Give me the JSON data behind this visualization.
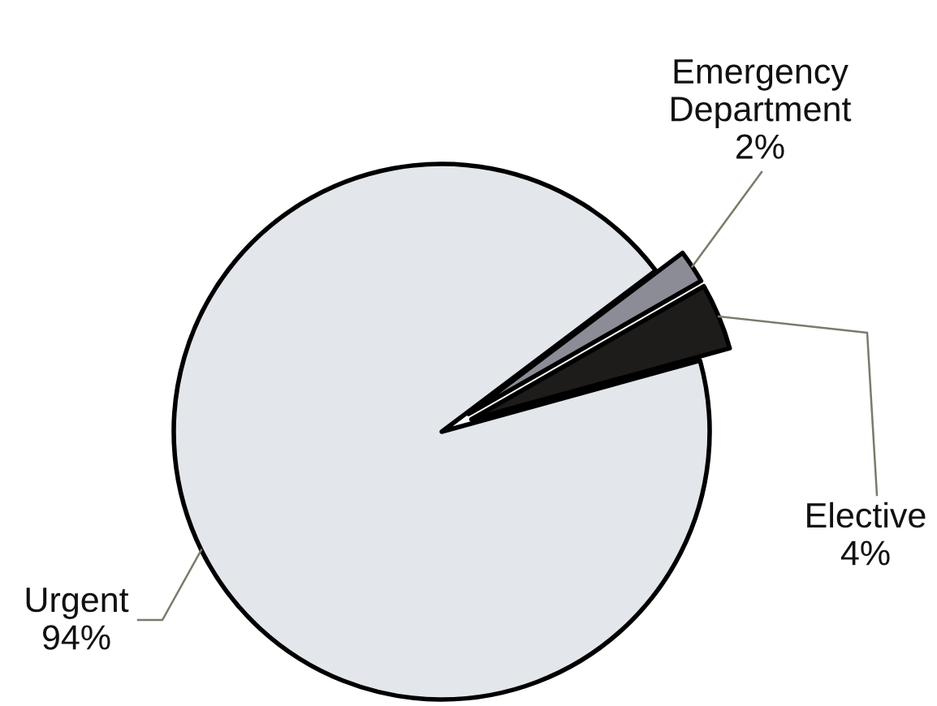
{
  "chart_data": {
    "type": "pie",
    "categories": [
      "Emergency Department",
      "Elective",
      "Urgent"
    ],
    "values": [
      2,
      4,
      94
    ],
    "value_labels": [
      "2%",
      "4%",
      "94%"
    ],
    "colors": [
      "#8c8c96",
      "#1e1b1b",
      "#e3e7eb"
    ]
  }
}
